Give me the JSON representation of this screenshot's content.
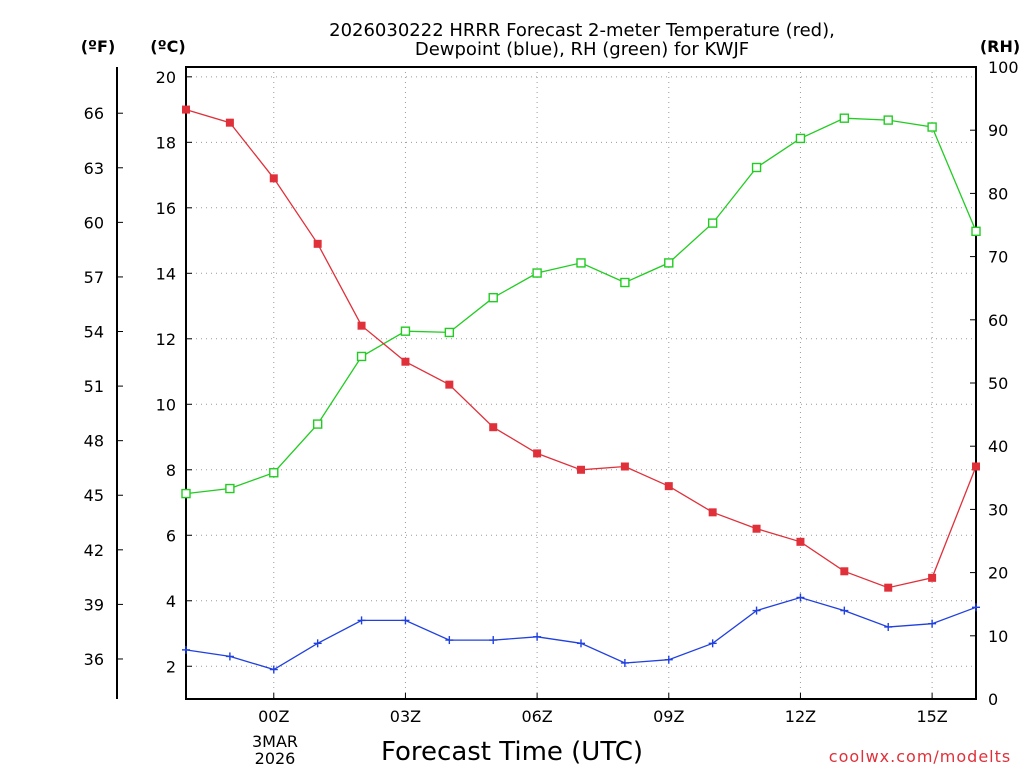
{
  "chart_data": {
    "type": "line",
    "title_line1": "2026030222 HRRR Forecast 2-meter Temperature (red),",
    "title_line2": "Dewpoint (blue), RH (green) for KWJF",
    "xlabel": "Forecast Time (UTC)",
    "credit": "coolwx.com/modelts",
    "date_label_line1": "3MAR",
    "date_label_line2": "2026",
    "units": {
      "fahrenheit": "(ºF)",
      "celsius": "(ºC)",
      "rh": "(RH)"
    },
    "x_hours": [
      -2,
      -1,
      0,
      1,
      2,
      3,
      4,
      5,
      6,
      7,
      8,
      9,
      10,
      11,
      12,
      13,
      14,
      15,
      16
    ],
    "x_ticks": [
      {
        "hour": 0,
        "label": "00Z"
      },
      {
        "hour": 3,
        "label": "03Z"
      },
      {
        "hour": 6,
        "label": "06Z"
      },
      {
        "hour": 9,
        "label": "09Z"
      },
      {
        "hour": 12,
        "label": "12Z"
      },
      {
        "hour": 15,
        "label": "15Z"
      }
    ],
    "celsius_ylim": [
      1,
      20.3
    ],
    "celsius_ticks": [
      "2",
      "4",
      "6",
      "8",
      "10",
      "12",
      "14",
      "16",
      "18",
      "20"
    ],
    "fahrenheit_ticks": [
      "36",
      "39",
      "42",
      "45",
      "48",
      "51",
      "54",
      "57",
      "60",
      "63",
      "66"
    ],
    "rh_ylim": [
      0,
      100
    ],
    "rh_ticks": [
      "0",
      "10",
      "20",
      "30",
      "40",
      "50",
      "60",
      "70",
      "80",
      "90",
      "100"
    ],
    "series": [
      {
        "name": "Temperature",
        "color": "#e0303a",
        "axis": "celsius",
        "marker": "filled-square",
        "values": [
          19.0,
          18.6,
          16.9,
          14.9,
          12.4,
          11.3,
          10.6,
          9.3,
          8.5,
          8.0,
          8.1,
          7.5,
          6.7,
          6.2,
          5.8,
          4.9,
          4.4,
          4.7,
          8.1
        ]
      },
      {
        "name": "Dewpoint",
        "color": "#2040e0",
        "axis": "celsius",
        "marker": "plus",
        "values": [
          2.5,
          2.3,
          1.9,
          2.7,
          3.4,
          3.4,
          2.8,
          2.8,
          2.9,
          2.7,
          2.1,
          2.2,
          2.7,
          3.7,
          4.1,
          3.7,
          3.2,
          3.3,
          3.8
        ]
      },
      {
        "name": "RH",
        "color": "#22cc22",
        "axis": "rh",
        "marker": "open-square",
        "values": [
          32.5,
          33.3,
          35.8,
          43.5,
          54.2,
          58.2,
          58.0,
          63.5,
          67.4,
          69.0,
          65.9,
          69.0,
          75.3,
          84.1,
          88.7,
          91.9,
          91.6,
          90.5,
          74.0
        ]
      }
    ]
  }
}
